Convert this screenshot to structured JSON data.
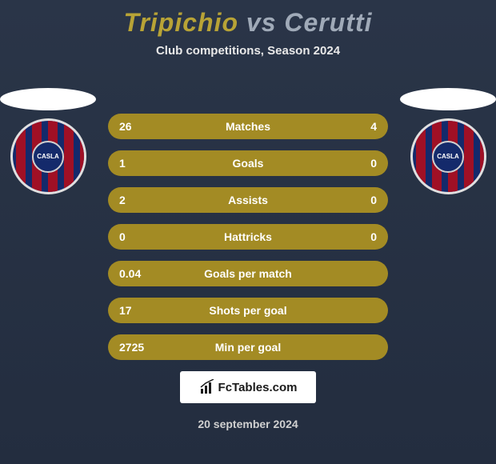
{
  "title": {
    "left": "Tripichio",
    "vs": "vs",
    "right": "Cerutti",
    "left_color": "#b8a336",
    "vs_color": "#a0aab8",
    "right_color": "#a0aab8"
  },
  "subtitle": "Club competitions, Season 2024",
  "badge": {
    "stripe_color": "#a01025",
    "base_color": "#142a6b",
    "border_color": "#e0e0e0",
    "center_text": "CASLA"
  },
  "stats": {
    "row_bg": "#a38b24",
    "text_color": "#ffffff",
    "rows": [
      {
        "left": "26",
        "label": "Matches",
        "right": "4"
      },
      {
        "left": "1",
        "label": "Goals",
        "right": "0"
      },
      {
        "left": "2",
        "label": "Assists",
        "right": "0"
      },
      {
        "left": "0",
        "label": "Hattricks",
        "right": "0"
      },
      {
        "left": "0.04",
        "label": "Goals per match",
        "right": ""
      },
      {
        "left": "17",
        "label": "Shots per goal",
        "right": ""
      },
      {
        "left": "2725",
        "label": "Min per goal",
        "right": ""
      }
    ]
  },
  "footer": {
    "site": "FcTables.com",
    "date": "20 september 2024"
  },
  "colors": {
    "bg_top": "#2a3548",
    "bg_bottom": "#232d3f"
  }
}
